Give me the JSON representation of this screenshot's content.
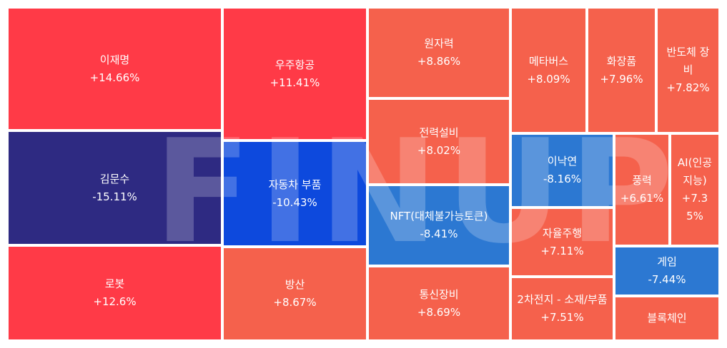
{
  "chart_data": {
    "type": "treemap",
    "watermark": "FINUP",
    "colors": {
      "strong_up": "#ff3a47",
      "up": "#f5614c",
      "strong_down_navy": "#2e2a82",
      "strong_down_blue": "#0d49dd",
      "down": "#2c78d2"
    },
    "tiles": [
      {
        "name": "이재명",
        "value": "+14.66%",
        "change": 14.66,
        "color": "strong_up"
      },
      {
        "name": "김문수",
        "value": "-15.11%",
        "change": -15.11,
        "color": "strong_down_navy"
      },
      {
        "name": "로봇",
        "value": "+12.6%",
        "change": 12.6,
        "color": "strong_up"
      },
      {
        "name": "우주항공",
        "value": "+11.41%",
        "change": 11.41,
        "color": "strong_up"
      },
      {
        "name": "자동차 부품",
        "value": "-10.43%",
        "change": -10.43,
        "color": "strong_down_blue"
      },
      {
        "name": "방산",
        "value": "+8.67%",
        "change": 8.67,
        "color": "up"
      },
      {
        "name": "원자력",
        "value": "+8.86%",
        "change": 8.86,
        "color": "up"
      },
      {
        "name": "전력설비",
        "value": "+8.02%",
        "change": 8.02,
        "color": "up"
      },
      {
        "name": "NFT(대체불가능토큰)",
        "value": "-8.41%",
        "change": -8.41,
        "color": "down"
      },
      {
        "name": "통신장비",
        "value": "+8.69%",
        "change": 8.69,
        "color": "up"
      },
      {
        "name": "메타버스",
        "value": "+8.09%",
        "change": 8.09,
        "color": "up"
      },
      {
        "name": "화장품",
        "value": "+7.96%",
        "change": 7.96,
        "color": "up"
      },
      {
        "name": "반도체 장비",
        "value": "+7.82%",
        "change": 7.82,
        "color": "up"
      },
      {
        "name": "이낙연",
        "value": "-8.16%",
        "change": -8.16,
        "color": "down"
      },
      {
        "name": "풍력",
        "value": "+6.61%",
        "change": 6.61,
        "color": "up"
      },
      {
        "name": "AI(인공지능)",
        "value": "+7.35%",
        "change": 7.35,
        "color": "up"
      },
      {
        "name": "자율주행",
        "value": "+7.11%",
        "change": 7.11,
        "color": "up"
      },
      {
        "name": "게임",
        "value": "-7.44%",
        "change": -7.44,
        "color": "down"
      },
      {
        "name": "2차전지 - 소재/부품",
        "value": "+7.51%",
        "change": 7.51,
        "color": "up"
      },
      {
        "name": "블록체인",
        "value": "",
        "change": null,
        "color": "up"
      }
    ]
  }
}
